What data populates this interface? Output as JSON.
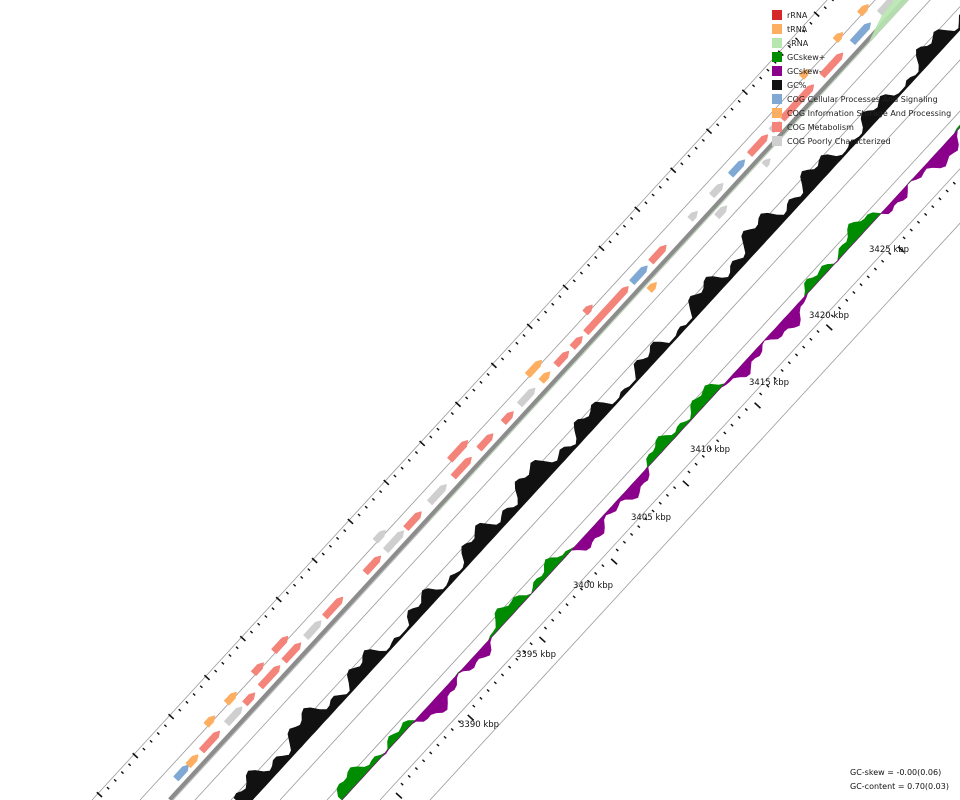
{
  "legend": [
    {
      "label": "rRNA",
      "color": "#d62728"
    },
    {
      "label": "tRNA",
      "color": "#fdae61"
    },
    {
      "label": "sRNA",
      "color": "#b8e6b0"
    },
    {
      "label": "GCskew+",
      "color": "#008c00"
    },
    {
      "label": "GCskew-",
      "color": "#8b008b"
    },
    {
      "label": "GC%",
      "color": "#111111"
    },
    {
      "label": "COG Cellular Processes And Signaling",
      "color": "#7fa9d4"
    },
    {
      "label": "COG Information Storage And Processing",
      "color": "#fdae61"
    },
    {
      "label": "COG Metabolism",
      "color": "#f4837a"
    },
    {
      "label": "COG Poorly Characterized",
      "color": "#cfcfcf"
    }
  ],
  "position_labels": [
    "3390 kbp",
    "3395 kbp",
    "3400 kbp",
    "3405 kbp",
    "3410 kbp",
    "3415 kbp",
    "3420 kbp",
    "3425 kbp"
  ],
  "stats": {
    "gc_skew": "GC-skew = -0.00(0.06)",
    "gc_content": "GC-content = 0.70(0.03)"
  },
  "colors": {
    "backbone": "#8c8c8c",
    "guide": "#9a9a9a",
    "gc_content": "#111111",
    "skew_positive": "#008c00",
    "skew_negative": "#8b008b",
    "cog_metabolism": "#f4837a",
    "cog_info": "#fdae61",
    "cog_cellular": "#7fa9d4",
    "cog_poor": "#cfcfcf",
    "srna": "#b8e6b0"
  }
}
